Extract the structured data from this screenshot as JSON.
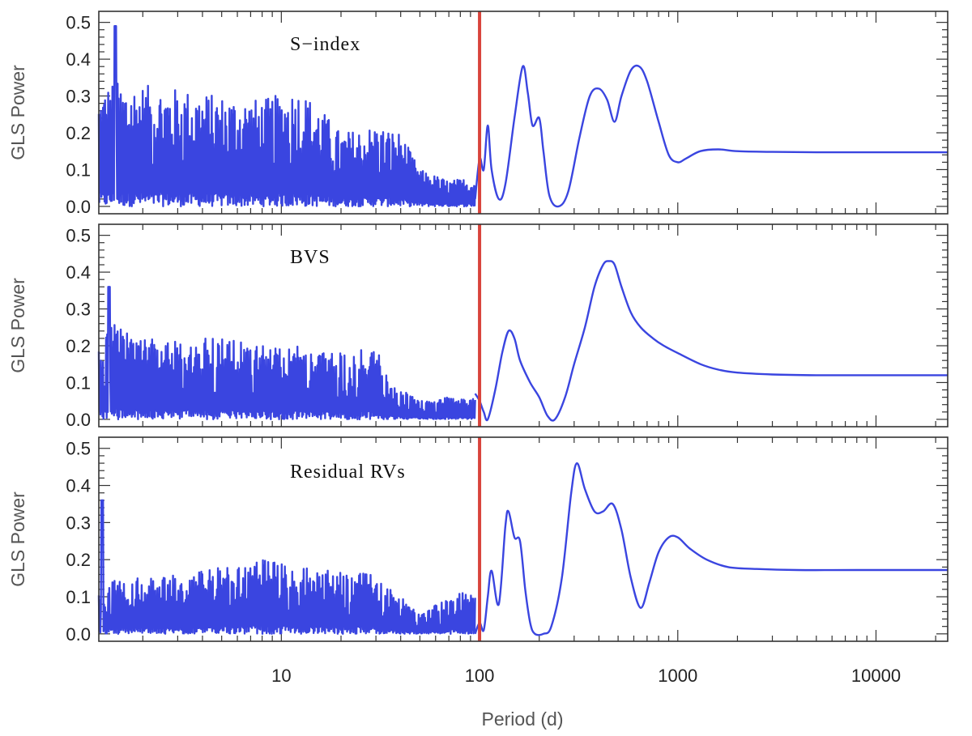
{
  "chart_data": {
    "type": "line",
    "xlabel": "Period (d)",
    "xscale": "log",
    "xlim": [
      1.2,
      23000
    ],
    "x_ticks": [
      10,
      100,
      1000,
      10000
    ],
    "x_tick_labels": [
      "10",
      "100",
      "1000",
      "10000"
    ],
    "marker_line": {
      "x": 100,
      "color": "#d9443c"
    },
    "line_color": "#3a45e0",
    "panels": [
      {
        "label": "S−index",
        "ylabel": "GLS Power",
        "ylim": [
          -0.02,
          0.53
        ],
        "y_ticks": [
          0.0,
          0.1,
          0.2,
          0.3,
          0.4,
          0.5
        ],
        "y_tick_labels": [
          "0.0",
          "0.1",
          "0.2",
          "0.3",
          "0.4",
          "0.5"
        ],
        "noise_region": {
          "x": [
            1.2,
            95
          ],
          "envelope": [
            [
              1.2,
              0.31
            ],
            [
              1.4,
              0.34
            ],
            [
              2,
              0.33
            ],
            [
              3,
              0.32
            ],
            [
              5,
              0.3
            ],
            [
              8,
              0.29
            ],
            [
              12,
              0.32
            ],
            [
              15,
              0.28
            ],
            [
              20,
              0.2
            ],
            [
              30,
              0.22
            ],
            [
              40,
              0.2
            ],
            [
              50,
              0.1
            ],
            [
              70,
              0.07
            ],
            [
              95,
              0.08
            ]
          ],
          "peak": {
            "x": 1.45,
            "y": 0.49
          }
        },
        "x": [
          95,
          100,
          105,
          110,
          115,
          125,
          135,
          150,
          165,
          175,
          185,
          200,
          210,
          225,
          250,
          280,
          320,
          360,
          400,
          440,
          480,
          520,
          580,
          640,
          700,
          800,
          900,
          1000,
          1100,
          1300,
          1600,
          2000,
          3000,
          5000,
          10000,
          23000
        ],
        "y": [
          0.02,
          0.13,
          0.1,
          0.22,
          0.1,
          0.02,
          0.06,
          0.24,
          0.38,
          0.31,
          0.22,
          0.24,
          0.15,
          0.03,
          0.0,
          0.04,
          0.19,
          0.3,
          0.32,
          0.29,
          0.23,
          0.3,
          0.37,
          0.38,
          0.34,
          0.23,
          0.14,
          0.12,
          0.13,
          0.15,
          0.155,
          0.15,
          0.148,
          0.147,
          0.147,
          0.147
        ]
      },
      {
        "label": "BVS",
        "ylabel": "GLS Power",
        "ylim": [
          -0.02,
          0.53
        ],
        "y_ticks": [
          0.0,
          0.1,
          0.2,
          0.3,
          0.4,
          0.5
        ],
        "y_tick_labels": [
          "0.0",
          "0.1",
          "0.2",
          "0.3",
          "0.4",
          "0.5"
        ],
        "noise_region": {
          "x": [
            1.2,
            95
          ],
          "envelope": [
            [
              1.2,
              0.22
            ],
            [
              1.4,
              0.26
            ],
            [
              2,
              0.22
            ],
            [
              3,
              0.22
            ],
            [
              5,
              0.22
            ],
            [
              8,
              0.2
            ],
            [
              12,
              0.2
            ],
            [
              20,
              0.18
            ],
            [
              30,
              0.2
            ],
            [
              35,
              0.1
            ],
            [
              50,
              0.05
            ],
            [
              70,
              0.06
            ],
            [
              95,
              0.06
            ]
          ],
          "peak": {
            "x": 1.35,
            "y": 0.36
          }
        },
        "x": [
          95,
          100,
          105,
          110,
          120,
          130,
          140,
          150,
          160,
          180,
          200,
          220,
          240,
          270,
          300,
          340,
          380,
          420,
          450,
          480,
          520,
          580,
          650,
          750,
          850,
          1000,
          1300,
          1600,
          2000,
          3000,
          5000,
          10000,
          23000
        ],
        "y": [
          0.07,
          0.05,
          0.02,
          0.0,
          0.08,
          0.18,
          0.24,
          0.22,
          0.16,
          0.1,
          0.06,
          0.01,
          0.0,
          0.06,
          0.15,
          0.25,
          0.36,
          0.42,
          0.43,
          0.42,
          0.36,
          0.29,
          0.25,
          0.22,
          0.2,
          0.18,
          0.15,
          0.135,
          0.127,
          0.122,
          0.12,
          0.12,
          0.12
        ]
      },
      {
        "label": "Residual RVs",
        "ylabel": "GLS Power",
        "ylim": [
          -0.02,
          0.53
        ],
        "y_ticks": [
          0.0,
          0.1,
          0.2,
          0.3,
          0.4,
          0.5
        ],
        "y_tick_labels": [
          "0.0",
          "0.1",
          "0.2",
          "0.3",
          "0.4",
          "0.5"
        ],
        "noise_region": {
          "x": [
            1.2,
            95
          ],
          "envelope": [
            [
              1.2,
              0.12
            ],
            [
              1.5,
              0.15
            ],
            [
              2,
              0.15
            ],
            [
              3,
              0.16
            ],
            [
              5,
              0.18
            ],
            [
              8,
              0.2
            ],
            [
              12,
              0.18
            ],
            [
              20,
              0.17
            ],
            [
              30,
              0.16
            ],
            [
              40,
              0.1
            ],
            [
              50,
              0.05
            ],
            [
              70,
              0.1
            ],
            [
              95,
              0.12
            ]
          ],
          "peak": {
            "x": 1.25,
            "y": 0.36
          }
        },
        "x": [
          95,
          100,
          105,
          110,
          115,
          125,
          135,
          140,
          150,
          160,
          170,
          180,
          190,
          210,
          230,
          260,
          290,
          310,
          340,
          380,
          420,
          470,
          520,
          580,
          650,
          720,
          800,
          900,
          1000,
          1150,
          1400,
          1800,
          2500,
          4000,
          8000,
          23000
        ],
        "y": [
          0.0,
          0.03,
          0.01,
          0.1,
          0.17,
          0.08,
          0.29,
          0.33,
          0.26,
          0.25,
          0.12,
          0.03,
          0.0,
          0.0,
          0.02,
          0.15,
          0.38,
          0.46,
          0.39,
          0.33,
          0.33,
          0.35,
          0.28,
          0.15,
          0.07,
          0.14,
          0.22,
          0.26,
          0.26,
          0.23,
          0.2,
          0.18,
          0.175,
          0.172,
          0.172,
          0.172
        ]
      }
    ]
  }
}
